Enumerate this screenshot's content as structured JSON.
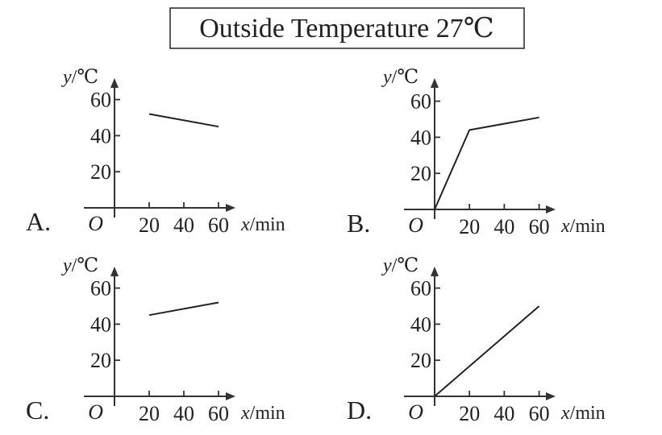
{
  "title": "Outside Temperature 27℃",
  "chart_data": [
    {
      "type": "line",
      "panel_label": "A.",
      "origin_label": "O",
      "xlabel": {
        "var": "x",
        "unit": "/min"
      },
      "ylabel": {
        "var": "y",
        "unit": "/℃"
      },
      "x_ticks": [
        20,
        40,
        60
      ],
      "y_ticks": [
        20,
        40,
        60
      ],
      "series": [
        {
          "x": [
            20,
            60
          ],
          "y": [
            52,
            45
          ]
        }
      ]
    },
    {
      "type": "line",
      "panel_label": "B.",
      "origin_label": "O",
      "xlabel": {
        "var": "x",
        "unit": "/min"
      },
      "ylabel": {
        "var": "y",
        "unit": "/℃"
      },
      "x_ticks": [
        20,
        40,
        60
      ],
      "y_ticks": [
        20,
        40,
        60
      ],
      "series": [
        {
          "x": [
            0,
            20,
            60
          ],
          "y": [
            0,
            44,
            51
          ]
        }
      ]
    },
    {
      "type": "line",
      "panel_label": "C.",
      "origin_label": "O",
      "xlabel": {
        "var": "x",
        "unit": "/min"
      },
      "ylabel": {
        "var": "y",
        "unit": "/℃"
      },
      "x_ticks": [
        20,
        40,
        60
      ],
      "y_ticks": [
        20,
        40,
        60
      ],
      "series": [
        {
          "x": [
            20,
            60
          ],
          "y": [
            45,
            52
          ]
        }
      ]
    },
    {
      "type": "line",
      "panel_label": "D.",
      "origin_label": "O",
      "xlabel": {
        "var": "x",
        "unit": "/min"
      },
      "ylabel": {
        "var": "y",
        "unit": "/℃"
      },
      "x_ticks": [
        20,
        40,
        60
      ],
      "y_ticks": [
        20,
        40,
        60
      ],
      "series": [
        {
          "x": [
            0,
            60
          ],
          "y": [
            0,
            50
          ]
        }
      ]
    }
  ]
}
